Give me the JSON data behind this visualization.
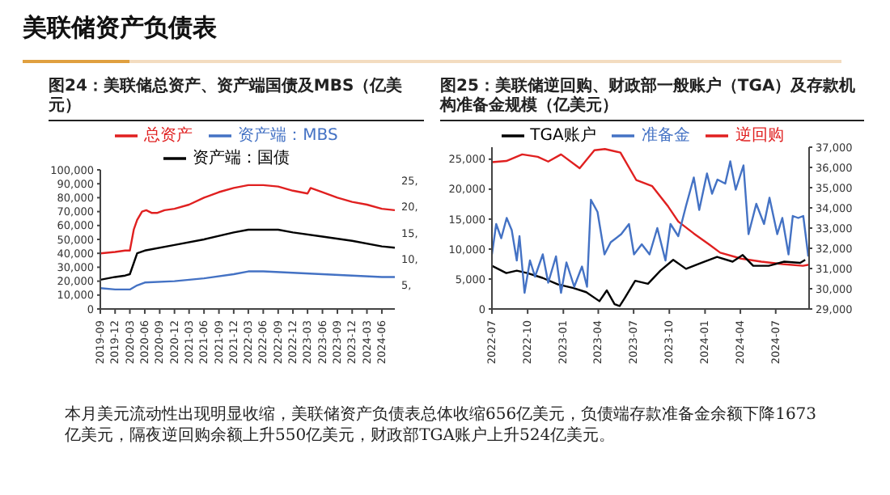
{
  "chart_data": [
    {
      "type": "line",
      "title": "图24：美联储总资产、资产端国债及MBS（亿美元）",
      "annotations": [
        "美联储资产负债表"
      ],
      "legend": "top",
      "xlim": [
        "2019-09-01",
        "2024-08-20"
      ],
      "xticks": [
        {
          "value": "2019-09-01",
          "label": "2019-09"
        },
        {
          "value": "2019-12-01",
          "label": "2019-12"
        },
        {
          "value": "2020-03-01",
          "label": "2020-03"
        },
        {
          "value": "2020-06-01",
          "label": "2020-06"
        },
        {
          "value": "2020-09-01",
          "label": "2020-09"
        },
        {
          "value": "2020-12-01",
          "label": "2020-12"
        },
        {
          "value": "2021-03-01",
          "label": "2021-03"
        },
        {
          "value": "2021-06-01",
          "label": "2021-06"
        },
        {
          "value": "2021-09-01",
          "label": "2021-09"
        },
        {
          "value": "2021-12-01",
          "label": "2021-12"
        },
        {
          "value": "2022-03-01",
          "label": "2022-03"
        },
        {
          "value": "2022-06-01",
          "label": "2022-06"
        },
        {
          "value": "2022-09-01",
          "label": "2022-09"
        },
        {
          "value": "2022-12-01",
          "label": "2022-12"
        },
        {
          "value": "2023-03-01",
          "label": "2023-03"
        },
        {
          "value": "2023-06-01",
          "label": "2023-06"
        },
        {
          "value": "2023-09-01",
          "label": "2023-09"
        },
        {
          "value": "2023-12-01",
          "label": "2023-12"
        },
        {
          "value": "2024-03-01",
          "label": "2024-03"
        },
        {
          "value": "2024-06-01",
          "label": "2024-06"
        }
      ],
      "ylim": [
        0,
        100000
      ],
      "yticks": [
        {
          "value": 0,
          "label": "0"
        },
        {
          "value": 10000,
          "label": "10,000"
        },
        {
          "value": 20000,
          "label": "20,000"
        },
        {
          "value": 30000,
          "label": "30,000"
        },
        {
          "value": 40000,
          "label": "40,000"
        },
        {
          "value": 50000,
          "label": "50,000"
        },
        {
          "value": 60000,
          "label": "60,000"
        },
        {
          "value": 70000,
          "label": "70,000"
        },
        {
          "value": 80000,
          "label": "80,000"
        },
        {
          "value": 90000,
          "label": "90,000"
        },
        {
          "value": 100000,
          "label": "100,000"
        }
      ],
      "y2lim": [
        0.5,
        27
      ],
      "y2ticks": [
        {
          "value": 5,
          "label": "5,"
        },
        {
          "value": 10,
          "label": "10,"
        },
        {
          "value": 15,
          "label": "15,"
        },
        {
          "value": 20,
          "label": "20,"
        },
        {
          "value": 25,
          "label": "25,"
        }
      ],
      "series": [
        {
          "name": "总资产",
          "color": "#e02020",
          "x": [
            "2019-09-01",
            "2019-12-01",
            "2020-02-01",
            "2020-03-01",
            "2020-03-25",
            "2020-04-15",
            "2020-05-15",
            "2020-06-10",
            "2020-07-15",
            "2020-08-15",
            "2020-10-01",
            "2020-12-01",
            "2021-03-01",
            "2021-06-01",
            "2021-09-01",
            "2021-12-01",
            "2022-03-01",
            "2022-06-01",
            "2022-09-01",
            "2022-12-01",
            "2023-03-01",
            "2023-03-20",
            "2023-06-01",
            "2023-09-01",
            "2023-12-01",
            "2024-03-01",
            "2024-06-01",
            "2024-08-20"
          ],
          "values": [
            40000,
            41000,
            42000,
            42000,
            57000,
            64000,
            70000,
            71000,
            69000,
            69000,
            71000,
            72000,
            75000,
            80000,
            84000,
            87000,
            89000,
            89000,
            88000,
            85000,
            83000,
            87000,
            84000,
            80000,
            77000,
            75000,
            72000,
            71000
          ]
        },
        {
          "name": "资产端：国债",
          "color": "#000000",
          "x": [
            "2019-09-01",
            "2019-12-01",
            "2020-02-01",
            "2020-03-01",
            "2020-03-25",
            "2020-04-15",
            "2020-06-01",
            "2020-12-01",
            "2021-06-01",
            "2021-12-01",
            "2022-03-01",
            "2022-06-01",
            "2022-09-01",
            "2022-12-01",
            "2023-06-01",
            "2023-12-01",
            "2024-06-01",
            "2024-08-20"
          ],
          "values": [
            21000,
            23000,
            24000,
            25000,
            33000,
            40000,
            42000,
            46000,
            50000,
            55000,
            57000,
            57000,
            57000,
            55000,
            52000,
            49000,
            45000,
            44000
          ]
        },
        {
          "name": "资产端：MBS",
          "color": "#4472c4",
          "x": [
            "2019-09-01",
            "2019-12-01",
            "2020-02-01",
            "2020-03-01",
            "2020-04-15",
            "2020-06-01",
            "2020-12-01",
            "2021-06-01",
            "2021-12-01",
            "2022-03-01",
            "2022-06-01",
            "2022-12-01",
            "2023-06-01",
            "2023-12-01",
            "2024-06-01",
            "2024-08-20"
          ],
          "values": [
            15000,
            14000,
            14000,
            14000,
            17000,
            19000,
            20000,
            22000,
            25000,
            27000,
            27000,
            26000,
            25000,
            24000,
            23000,
            23000
          ]
        }
      ]
    },
    {
      "type": "line",
      "title": "图25：美联储逆回购、财政部一般账户（TGA）及存款机构准备金规模（亿美元）",
      "annotations": [
        "本月美元流动性出现明显收缩，美联储资产负债表总体收缩656亿美元，负债端存款准备金余额下降1673亿美元，隔夜逆回购余额上升550亿美元，财政部TGA账户上升524亿美元。"
      ],
      "legend": "top",
      "xlim": [
        "2022-07-01",
        "2024-09-25"
      ],
      "xticks": [
        {
          "value": "2022-07-01",
          "label": "2022-07"
        },
        {
          "value": "2022-10-01",
          "label": "2022-10"
        },
        {
          "value": "2023-01-01",
          "label": "2023-01"
        },
        {
          "value": "2023-04-01",
          "label": "2023-04"
        },
        {
          "value": "2023-07-01",
          "label": "2023-07"
        },
        {
          "value": "2023-10-01",
          "label": "2023-10"
        },
        {
          "value": "2024-01-01",
          "label": "2024-01"
        },
        {
          "value": "2024-04-01",
          "label": "2024-04"
        },
        {
          "value": "2024-07-01",
          "label": "2024-07"
        }
      ],
      "ylim": [
        0,
        27000
      ],
      "yticks": [
        {
          "value": 0,
          "label": "0"
        },
        {
          "value": 5000,
          "label": "5,000"
        },
        {
          "value": 10000,
          "label": "10,000"
        },
        {
          "value": 15000,
          "label": "15,000"
        },
        {
          "value": 20000,
          "label": "20,000"
        },
        {
          "value": 25000,
          "label": "25,000"
        }
      ],
      "y2lim": [
        29000,
        37000
      ],
      "y2ticks": [
        {
          "value": 29000,
          "label": "29,000"
        },
        {
          "value": 30000,
          "label": "30,000"
        },
        {
          "value": 31000,
          "label": "31,000"
        },
        {
          "value": 32000,
          "label": "32,000"
        },
        {
          "value": 33000,
          "label": "33,000"
        },
        {
          "value": 34000,
          "label": "34,000"
        },
        {
          "value": 35000,
          "label": "35,000"
        },
        {
          "value": 36000,
          "label": "36,000"
        },
        {
          "value": 37000,
          "label": "37,000"
        }
      ],
      "series": [
        {
          "name": "逆回购",
          "color": "#e02020",
          "x": [
            "2022-07-01",
            "2022-08-07",
            "2022-09-17",
            "2022-10-27",
            "2022-11-23",
            "2022-12-26",
            "2023-02-12",
            "2023-03-22",
            "2023-04-18",
            "2023-05-28",
            "2023-07-08",
            "2023-08-18",
            "2023-09-28",
            "2023-10-24",
            "2023-12-03",
            "2024-01-13",
            "2024-02-09",
            "2024-04-03",
            "2024-05-25",
            "2024-07-18",
            "2024-09-09",
            "2024-09-25"
          ],
          "values": [
            24500,
            24700,
            25800,
            25400,
            24600,
            25800,
            23500,
            26500,
            26700,
            26100,
            21500,
            20500,
            17100,
            14600,
            12600,
            10700,
            9400,
            8400,
            7900,
            7500,
            7200,
            7400
          ]
        },
        {
          "name": "TGA账户",
          "color": "#000000",
          "x": [
            "2022-07-01",
            "2022-08-07",
            "2022-09-03",
            "2022-09-30",
            "2022-11-08",
            "2022-12-18",
            "2023-01-27",
            "2023-03-01",
            "2023-04-04",
            "2023-04-23",
            "2023-05-13",
            "2023-05-26",
            "2023-06-08",
            "2023-07-05",
            "2023-08-07",
            "2023-09-08",
            "2023-10-11",
            "2023-11-13",
            "2023-12-23",
            "2024-02-01",
            "2024-03-12",
            "2024-04-07",
            "2024-05-04",
            "2024-06-13",
            "2024-07-23",
            "2024-09-02",
            "2024-09-15"
          ],
          "values": [
            7200,
            6000,
            6400,
            6000,
            5200,
            4100,
            3500,
            2800,
            1300,
            3100,
            800,
            500,
            1800,
            4700,
            4200,
            6400,
            8200,
            6700,
            7700,
            8700,
            7900,
            9000,
            7200,
            7200,
            7900,
            7700,
            8200
          ]
        },
        {
          "name": "准备金",
          "color": "#4472c4",
          "axis": "y2",
          "x": [
            "2022-07-01",
            "2022-07-12",
            "2022-07-25",
            "2022-08-08",
            "2022-08-21",
            "2022-09-03",
            "2022-09-10",
            "2022-09-23",
            "2022-10-07",
            "2022-10-20",
            "2022-11-09",
            "2022-11-23",
            "2022-12-13",
            "2022-12-26",
            "2023-01-09",
            "2023-01-29",
            "2023-02-18",
            "2023-03-03",
            "2023-03-13",
            "2023-03-30",
            "2023-04-17",
            "2023-05-03",
            "2023-05-30",
            "2023-06-19",
            "2023-07-02",
            "2023-07-22",
            "2023-08-11",
            "2023-08-31",
            "2023-09-21",
            "2023-10-04",
            "2023-10-24",
            "2023-11-13",
            "2023-12-03",
            "2023-12-17",
            "2024-01-06",
            "2024-01-19",
            "2024-02-02",
            "2024-02-22",
            "2024-03-06",
            "2024-03-20",
            "2024-04-09",
            "2024-04-22",
            "2024-05-12",
            "2024-06-01",
            "2024-06-15",
            "2024-07-05",
            "2024-07-18",
            "2024-08-03",
            "2024-08-14",
            "2024-08-28",
            "2024-09-10",
            "2024-09-23"
          ],
          "values": [
            31700,
            33200,
            32500,
            33500,
            32900,
            31400,
            32600,
            29800,
            31400,
            30600,
            31700,
            30300,
            31600,
            29800,
            31300,
            30100,
            31100,
            30100,
            34400,
            33800,
            31700,
            32300,
            32700,
            33200,
            31700,
            32200,
            31700,
            33000,
            31400,
            33200,
            32600,
            34100,
            35500,
            33900,
            35700,
            34700,
            35400,
            35200,
            36300,
            34900,
            36100,
            32700,
            34200,
            33200,
            34500,
            32700,
            33500,
            31700,
            33600,
            33500,
            33600,
            31600
          ]
        }
      ]
    }
  ]
}
